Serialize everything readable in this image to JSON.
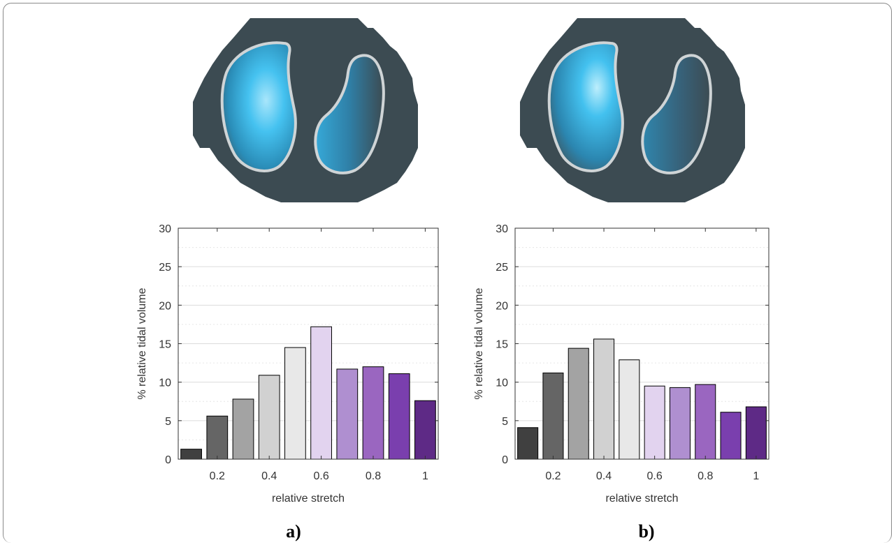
{
  "panels": [
    {
      "label": "a)"
    },
    {
      "label": "b)"
    }
  ],
  "colors": {
    "body": "#3c4b52",
    "lung_outline": "#cfd4d6",
    "lung_fill": "#3fc0ee",
    "bars": [
      "#404040",
      "#656565",
      "#a3a3a3",
      "#d1d1d1",
      "#e8e8e8",
      "#e2d3ef",
      "#af8fd0",
      "#9a66c0",
      "#7a3fae",
      "#5e2a86"
    ]
  },
  "chart_data": [
    {
      "type": "bar",
      "title": "",
      "xlabel": "relative stretch",
      "ylabel": "% relative tidal volume",
      "ylim": [
        0,
        30
      ],
      "yticks": [
        "0",
        "5",
        "10",
        "15",
        "20",
        "25",
        "30"
      ],
      "xticks": [
        "0.2",
        "0.4",
        "0.6",
        "0.8",
        "1"
      ],
      "x": [
        0.1,
        0.2,
        0.3,
        0.4,
        0.5,
        0.6,
        0.7,
        0.8,
        0.9,
        1.0
      ],
      "values": [
        1.3,
        5.6,
        7.8,
        10.9,
        14.5,
        17.2,
        11.7,
        12.0,
        11.1,
        7.6
      ],
      "grid": "horizontal"
    },
    {
      "type": "bar",
      "title": "",
      "xlabel": "relative stretch",
      "ylabel": "% relative tidal volume",
      "ylim": [
        0,
        30
      ],
      "yticks": [
        "0",
        "5",
        "10",
        "15",
        "20",
        "25",
        "30"
      ],
      "xticks": [
        "0.2",
        "0.4",
        "0.6",
        "0.8",
        "1"
      ],
      "x": [
        0.1,
        0.2,
        0.3,
        0.4,
        0.5,
        0.6,
        0.7,
        0.8,
        0.9,
        1.0
      ],
      "values": [
        4.1,
        11.2,
        14.4,
        15.6,
        12.9,
        9.5,
        9.3,
        9.7,
        6.1,
        6.8
      ],
      "grid": "horizontal"
    }
  ]
}
